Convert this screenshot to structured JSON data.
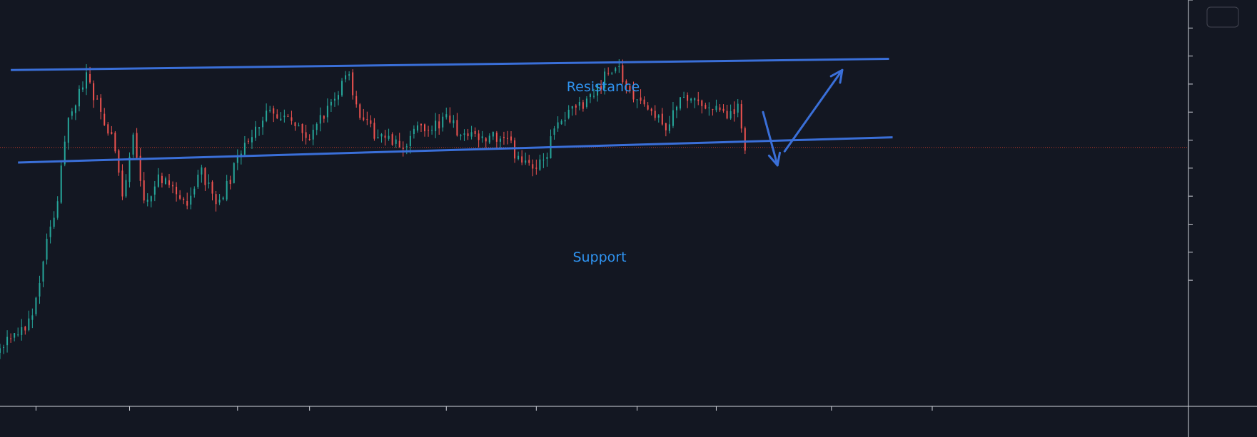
{
  "colors": {
    "background": "#131722",
    "axis": "#d1d4dc",
    "up": "#26a69a",
    "down": "#ef5350",
    "trendline": "#3a6fd8",
    "label": "#2f93f0",
    "last_price_line": "#c0392b"
  },
  "icons": {
    "toolbar": "settings-button"
  },
  "chart_data": {
    "type": "candlestick",
    "annotations": [
      {
        "name": "resistance",
        "text": "Resistance"
      },
      {
        "name": "support",
        "text": "Support"
      }
    ],
    "x": {
      "count": 260,
      "tick_positions": [
        10,
        36,
        66,
        86,
        124,
        149,
        177,
        199,
        231,
        259
      ]
    },
    "y": {
      "range": [
        30,
        175
      ],
      "tick_values": [
        175,
        165,
        155,
        145,
        135,
        125,
        115,
        105,
        95,
        85,
        75
      ]
    },
    "channel": {
      "resistance": [
        [
          0,
          150
        ],
        [
          244,
          154
        ]
      ],
      "support": [
        [
          2,
          117
        ],
        [
          245,
          126
        ]
      ]
    },
    "forecast_arrows": [
      {
        "from": [
          210,
          135
        ],
        "to": [
          214,
          116
        ]
      },
      {
        "from": [
          216,
          121
        ],
        "to": [
          232,
          150
        ]
      }
    ],
    "last_price": 122.4,
    "close_anchors": [
      [
        0,
        52
      ],
      [
        5,
        58
      ],
      [
        9,
        60
      ],
      [
        13,
        88
      ],
      [
        16,
        105
      ],
      [
        19,
        131
      ],
      [
        22,
        143
      ],
      [
        24,
        147
      ],
      [
        27,
        138
      ],
      [
        31,
        127
      ],
      [
        34,
        104
      ],
      [
        37,
        126
      ],
      [
        40,
        101
      ],
      [
        44,
        113
      ],
      [
        48,
        107
      ],
      [
        52,
        104
      ],
      [
        56,
        113
      ],
      [
        60,
        103
      ],
      [
        63,
        108
      ],
      [
        66,
        118
      ],
      [
        70,
        128
      ],
      [
        74,
        135
      ],
      [
        78,
        134
      ],
      [
        82,
        129
      ],
      [
        86,
        127
      ],
      [
        90,
        133
      ],
      [
        93,
        142
      ],
      [
        97,
        147
      ],
      [
        100,
        134
      ],
      [
        104,
        127
      ],
      [
        108,
        127
      ],
      [
        112,
        122
      ],
      [
        116,
        130
      ],
      [
        120,
        129
      ],
      [
        124,
        132
      ],
      [
        128,
        128
      ],
      [
        133,
        124
      ],
      [
        137,
        127
      ],
      [
        140,
        126
      ],
      [
        144,
        119
      ],
      [
        148,
        115
      ],
      [
        151,
        118
      ],
      [
        154,
        128
      ],
      [
        160,
        136
      ],
      [
        165,
        142
      ],
      [
        169,
        149
      ],
      [
        172,
        151
      ],
      [
        175,
        142
      ],
      [
        178,
        141
      ],
      [
        181,
        135
      ],
      [
        185,
        128
      ],
      [
        188,
        138
      ],
      [
        192,
        139
      ],
      [
        196,
        138
      ],
      [
        199,
        138
      ],
      [
        202,
        132
      ],
      [
        205,
        137
      ],
      [
        207,
        122
      ]
    ]
  }
}
